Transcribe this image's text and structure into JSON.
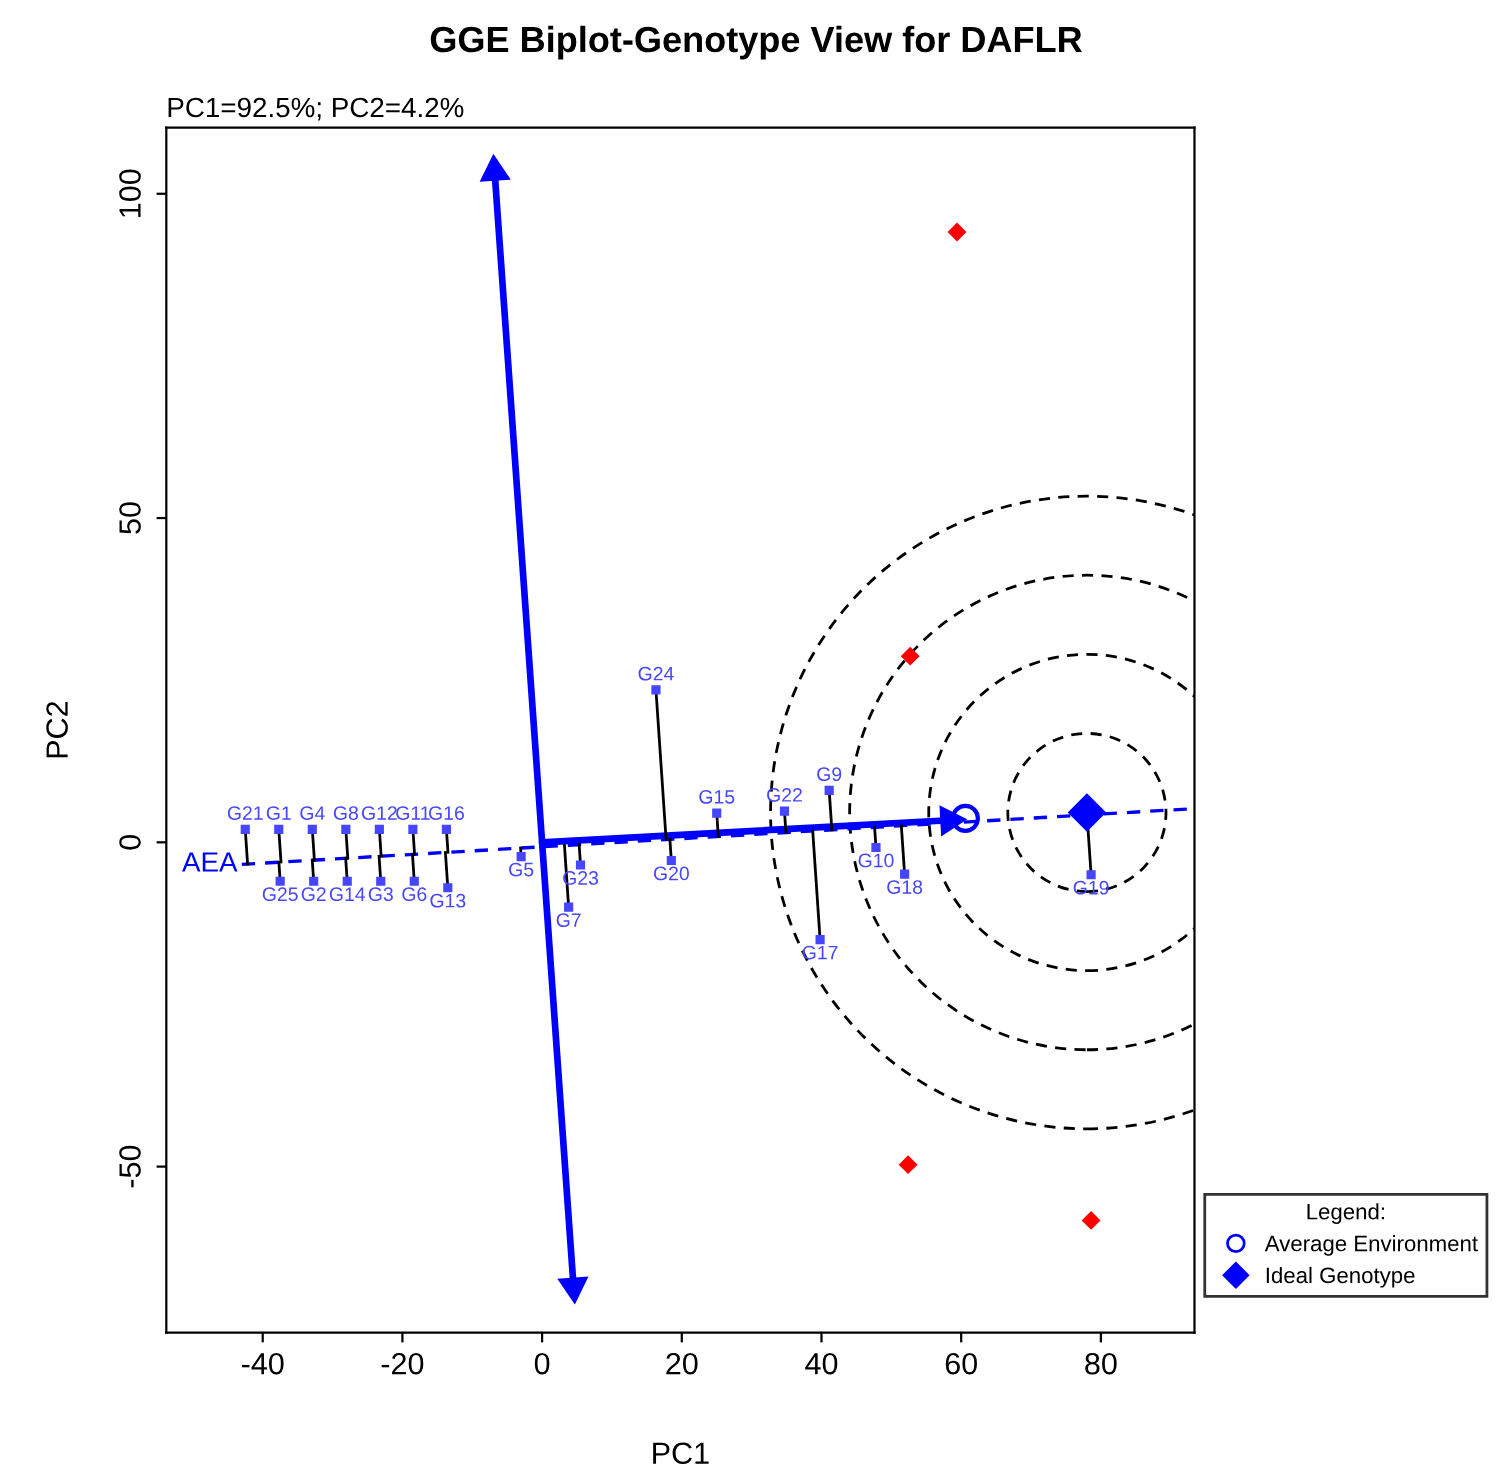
{
  "chart_data": {
    "type": "scatter",
    "title": "GGE Biplot-Genotype View for DAFLR",
    "subtitle": "PC1=92.5%; PC2=4.2%",
    "xlabel": "PC1",
    "ylabel": "PC2",
    "legend_title": "Legend:",
    "legend": "bottom right",
    "grid": false,
    "xlim": [
      -53.8,
      93.4
    ],
    "ylim": [
      -75.6,
      110.2
    ],
    "xticks": [
      -40,
      -20,
      0,
      20,
      40,
      60,
      80
    ],
    "yticks": [
      -50,
      0,
      50,
      100
    ],
    "series": [
      {
        "type": "line",
        "name": "AEA",
        "line_style": "dashed",
        "color": "#0000ff",
        "x": [
          -43,
          93.4
        ],
        "values": [
          -3.4,
          5.2
        ]
      },
      {
        "type": "line",
        "line_style": "solid",
        "marker": "triangle",
        "color": "#0000ff",
        "x": [
          0,
          58.3
        ],
        "values": [
          0,
          3.4
        ]
      },
      {
        "type": "line",
        "line_style": "solid",
        "marker": "triangle",
        "color": "#0000ff",
        "x": [
          -6.8,
          4.5
        ],
        "values": [
          103.4,
          -68.5
        ]
      },
      {
        "marker": "diamond",
        "color": "#ff0000",
        "x": [
          59.4,
          52.7,
          52.4,
          78.6
        ],
        "values": [
          94.1,
          28.7,
          -49.7,
          -58.3
        ]
      },
      {
        "name": "Average Environment",
        "marker": "circle",
        "color": "#0000ff",
        "x": [
          60.6
        ],
        "values": [
          3.7
        ]
      },
      {
        "name": "Ideal Genotype",
        "marker": "diamond",
        "color": "#0000ff",
        "x": [
          78.0
        ],
        "values": [
          4.6
        ]
      },
      {
        "marker": "square",
        "color": "#4646ff",
        "x": [
          16.3,
          18.5,
          25.0,
          34.7,
          41.1,
          47.8,
          51.9,
          39.8,
          -3.0,
          5.5,
          3.8,
          78.6,
          -13.5,
          -13.7,
          -18.5,
          -23.3,
          -28.1,
          -32.9,
          -37.7,
          -42.5,
          -18.3,
          -23.1,
          -27.9,
          -32.7,
          -37.5
        ],
        "values": [
          23.5,
          -2.8,
          4.5,
          4.8,
          8.0,
          -0.8,
          -4.9,
          -15.0,
          -2.2,
          -3.5,
          -10.0,
          -5.0,
          -7.0,
          2.0,
          2.0,
          2.0,
          2.0,
          2.0,
          2.0,
          2.0,
          -6.0,
          -6.0,
          -6.0,
          -6.0,
          -6.0
        ],
        "value_labels": [
          "G24",
          "G20",
          "G15",
          "G22",
          "G9",
          "G10",
          "G18",
          "G17",
          "G5",
          "G23",
          "G7",
          "G19",
          "G13",
          "G16",
          "G11",
          "G12",
          "G8",
          "G4",
          "G1",
          "G21",
          "G6",
          "G3",
          "G14",
          "G2",
          "G25"
        ]
      }
    ]
  }
}
